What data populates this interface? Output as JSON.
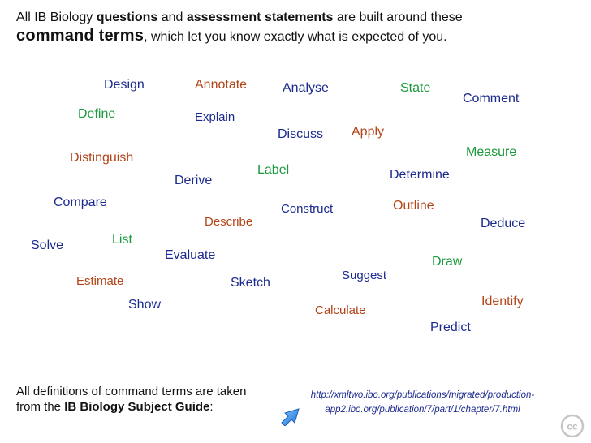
{
  "header": {
    "part1": "All IB Biology ",
    "bold1": "questions",
    "part2": " and ",
    "bold2": "assessment statements",
    "part3": " are built around these",
    "big_term": "command terms",
    "part4": ", which let you know exactly what is expected of you."
  },
  "terms": {
    "design": "Design",
    "annotate": "Annotate",
    "analyse": "Analyse",
    "state": "State",
    "comment": "Comment",
    "define": "Define",
    "explain": "Explain",
    "discuss": "Discuss",
    "apply": "Apply",
    "measure": "Measure",
    "distinguish": "Distinguish",
    "label": "Label",
    "derive": "Derive",
    "determine": "Determine",
    "compare": "Compare",
    "construct": "Construct",
    "outline": "Outline",
    "describe": "Describe",
    "deduce": "Deduce",
    "list": "List",
    "solve": "Solve",
    "evaluate": "Evaluate",
    "draw": "Draw",
    "suggest": "Suggest",
    "estimate": "Estimate",
    "sketch": "Sketch",
    "identify": "Identify",
    "show": "Show",
    "calculate": "Calculate",
    "predict": "Predict"
  },
  "colors": {
    "navy": "#1b2a8f",
    "green": "#1a9a3b",
    "brown": "#b34418"
  },
  "footer": {
    "line1": "All definitions of command terms are taken",
    "line2_prefix": "from the ",
    "line2_bold": "IB Biology Subject Guide",
    "line2_suffix": ":",
    "link_line1": "http://xmltwo.ibo.org/publications/migrated/production-",
    "link_line2": "app2.ibo.org/publication/7/part/1/chapter/7.html"
  },
  "icons": {
    "arrow": "blue-arrow-icon",
    "license": "creative-commons-icon"
  }
}
